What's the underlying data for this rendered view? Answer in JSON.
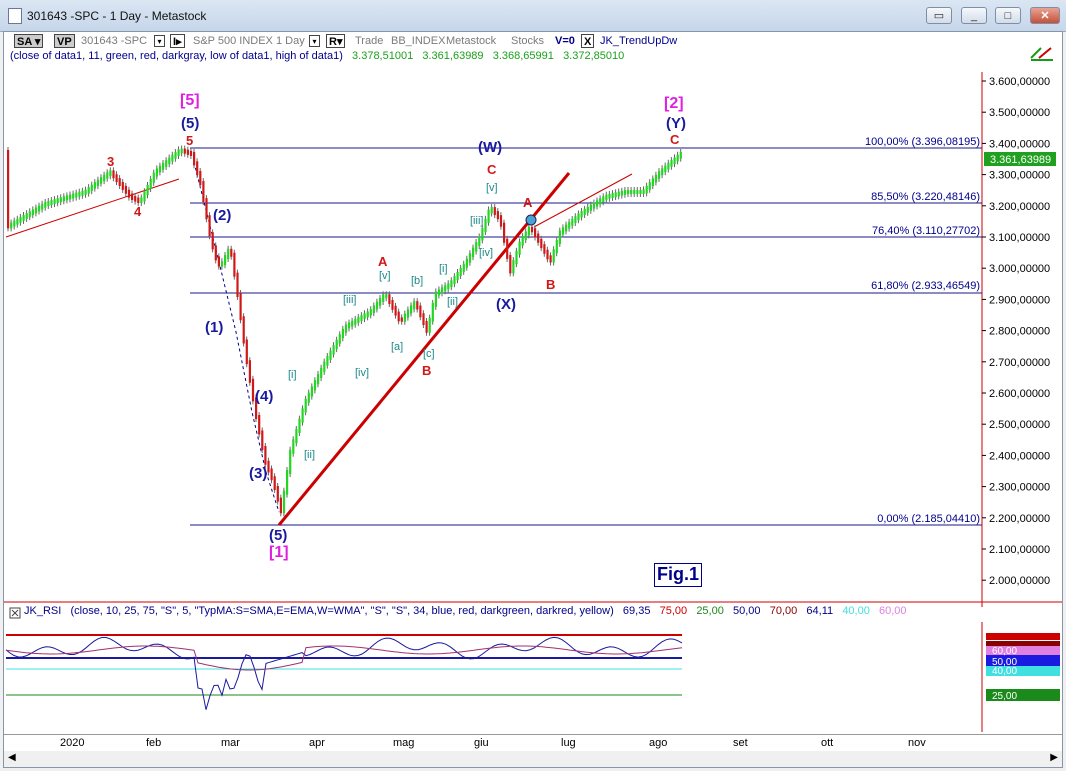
{
  "window": {
    "title": "301643 -SPC - 1 Day - Metastock"
  },
  "toolbar": {
    "sa": "SA",
    "vp": "VP",
    "symbol": "301643 -SPC",
    "i_btn": "I",
    "instrument": "S&P 500 INDEX",
    "period": "1 Day",
    "r_btn": "R",
    "trade": "Trade",
    "bb_index": "BB_INDEX",
    "metastock": "Metastock",
    "stocks": "Stocks",
    "v0": "V=0",
    "x_btn": "X",
    "indicator": "JK_TrendUpDw"
  },
  "params": {
    "text": "(close of data1, 11, green, red, darkgray, low of data1, high of data1)",
    "v1": "3.378,51001",
    "v2": "3.361,63989",
    "v3": "3.368,65991",
    "v4": "3.372,85010"
  },
  "price_axis": {
    "labels": [
      "3.600,00000",
      "3.500,00000",
      "3.400,00000",
      "3.300,00000",
      "3.200,00000",
      "3.100,00000",
      "3.000,00000",
      "2.900,00000",
      "2.800,00000",
      "2.700,00000",
      "2.600,00000",
      "2.500,00000",
      "2.400,00000",
      "2.300,00000",
      "2.200,00000",
      "2.100,00000",
      "2.000,00000"
    ],
    "current_price": "3.361,63989"
  },
  "fib_levels": [
    "100,00% (3.396,08195)",
    "85,50% (3.220,48146)",
    "76,40% (3.110,27702)",
    "61,80% (2.933,46549)",
    "0,00% (2.185,04410)"
  ],
  "wave_labels": {
    "top5": "[5]",
    "top2": "[2]",
    "p5": "(5)",
    "pY": "(Y)",
    "pW": "(W)",
    "pX": "(X)",
    "p1": "(1)",
    "p2": "(2)",
    "p3": "(3)",
    "p4": "(4)",
    "p5b": "(5)",
    "b1": "[1]",
    "r3": "3",
    "r4": "4",
    "r5": "5",
    "rC1": "C",
    "rC2": "C",
    "rA1": "A",
    "rA2": "A",
    "rB1": "B",
    "rB2": "B",
    "ti": "[i]",
    "tii": "[ii]",
    "tiii": "[iii]",
    "tiv": "[iv]",
    "tv": "[v]",
    "ta": "[a]",
    "tb": "[b]",
    "tc": "[c]",
    "ui": "[i]",
    "uii": "[ii]",
    "uiii": "[iii]",
    "uiv": "[iv]",
    "uv": "[v]"
  },
  "fig_label": "Fig.1",
  "rsi": {
    "name": "JK_RSI",
    "text": "(close, 10, 25, 75, \"S\", 5, \"TypMA:S=SMA,E=EMA,W=WMA\", \"S\", \"S\", 34, blue, red, darkgreen, darkred, yellow)",
    "v1": "69,35",
    "v2": "75,00",
    "v3": "25,00",
    "v4": "50,00",
    "v5": "70,00",
    "v6": "64,11",
    "v7": "40,00",
    "v8": "60,00",
    "axis_tags": [
      "50,00",
      "60,00",
      "40,00",
      "25,00"
    ]
  },
  "months": [
    "2020",
    "feb",
    "mar",
    "apr",
    "mag",
    "giu",
    "lug",
    "ago",
    "set",
    "ott",
    "nov"
  ]
}
